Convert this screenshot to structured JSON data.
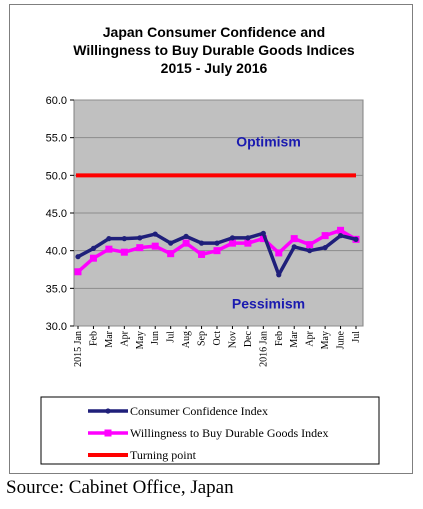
{
  "chart_data": {
    "type": "line",
    "title_lines": [
      "Japan Consumer Confidence and",
      "Willingness to Buy Durable Goods Indices",
      "2015  - July  2016"
    ],
    "xlabel": "",
    "ylabel": "",
    "ylim": [
      30.0,
      60.0
    ],
    "yticks": [
      "30.0",
      "35.0",
      "40.0",
      "45.0",
      "50.0",
      "55.0",
      "60.0"
    ],
    "categories": [
      "2015 Jan",
      "Feb",
      "Mar",
      "Apr",
      "May",
      "Jun",
      "Jul",
      "Aug",
      "Sep",
      "Oct",
      "Nov",
      "Dec",
      "2016 Jan",
      "Feb",
      "Mar",
      "Apr",
      "May",
      "June",
      "Jul"
    ],
    "series": [
      {
        "name": "Consumer Confidence Index",
        "color": "#1f1f7a",
        "values": [
          39.2,
          40.3,
          41.6,
          41.6,
          41.7,
          42.2,
          41.0,
          41.9,
          41.0,
          41.0,
          41.7,
          41.7,
          42.3,
          36.8,
          40.5,
          40.0,
          40.4,
          42.0,
          41.5
        ]
      },
      {
        "name": "Willingness to Buy Durable Goods Index",
        "color": "#ff00ff",
        "values": [
          37.2,
          39.0,
          40.2,
          39.8,
          40.4,
          40.6,
          39.6,
          41.0,
          39.5,
          40.0,
          41.0,
          41.0,
          41.6,
          39.7,
          41.6,
          40.8,
          42.0,
          42.7,
          41.5
        ]
      },
      {
        "name": "Turning point",
        "color": "#ff0000",
        "values": [
          50.0,
          50.0,
          50.0,
          50.0,
          50.0,
          50.0,
          50.0,
          50.0,
          50.0,
          50.0,
          50.0,
          50.0,
          50.0,
          50.0,
          50.0,
          50.0,
          50.0,
          50.0,
          50.0
        ]
      }
    ],
    "annotations": [
      {
        "text": "Optimism",
        "y": 54.5
      },
      {
        "text": "Pessimism",
        "y": 33.0
      }
    ],
    "plot_background": "#c0c0c0",
    "grid": true,
    "legend_placement": "bottom"
  },
  "source": "Source: Cabinet Office, Japan"
}
